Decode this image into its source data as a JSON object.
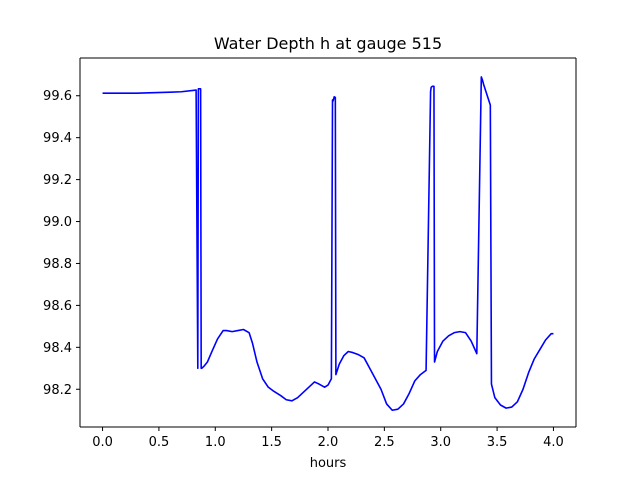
{
  "chart_data": {
    "type": "line",
    "title": "Water Depth h at gauge 515",
    "xlabel": "hours",
    "ylabel": "",
    "xlim": [
      -0.2,
      4.2
    ],
    "ylim": [
      98.02,
      99.78
    ],
    "xticks": [
      0.0,
      0.5,
      1.0,
      1.5,
      2.0,
      2.5,
      3.0,
      3.5,
      4.0
    ],
    "xtick_labels": [
      "0.0",
      "0.5",
      "1.0",
      "1.5",
      "2.0",
      "2.5",
      "3.0",
      "3.5",
      "4.0"
    ],
    "yticks": [
      98.2,
      98.4,
      98.6,
      98.8,
      99.0,
      99.2,
      99.4,
      99.6
    ],
    "ytick_labels": [
      "98.2",
      "98.4",
      "98.6",
      "98.8",
      "99.0",
      "99.2",
      "99.4",
      "99.6"
    ],
    "grid": false,
    "series": [
      {
        "color": "#0000ff",
        "x": [
          0.0,
          0.3,
          0.6,
          0.7,
          0.83,
          0.845,
          0.85,
          0.87,
          0.875,
          0.88,
          0.9,
          0.93,
          0.97,
          1.02,
          1.07,
          1.1,
          1.15,
          1.2,
          1.25,
          1.3,
          1.33,
          1.37,
          1.42,
          1.47,
          1.52,
          1.58,
          1.63,
          1.68,
          1.73,
          1.78,
          1.83,
          1.88,
          1.92,
          1.97,
          2.0,
          2.03,
          2.04,
          2.045,
          2.055,
          2.065,
          2.07,
          2.1,
          2.14,
          2.18,
          2.22,
          2.27,
          2.32,
          2.37,
          2.42,
          2.47,
          2.52,
          2.57,
          2.62,
          2.67,
          2.72,
          2.77,
          2.82,
          2.87,
          2.91,
          2.915,
          2.925,
          2.94,
          2.945,
          2.97,
          3.02,
          3.07,
          3.12,
          3.17,
          3.22,
          3.27,
          3.32,
          3.36,
          3.37,
          3.38,
          3.44,
          3.45,
          3.48,
          3.53,
          3.58,
          3.63,
          3.68,
          3.73,
          3.78,
          3.83,
          3.88,
          3.93,
          3.98,
          4.0
        ],
        "y": [
          99.612,
          99.612,
          99.617,
          99.619,
          99.627,
          98.3,
          99.633,
          99.633,
          98.3,
          98.3,
          98.31,
          98.33,
          98.38,
          98.44,
          98.48,
          98.48,
          98.475,
          98.48,
          98.485,
          98.47,
          98.42,
          98.33,
          98.25,
          98.21,
          98.19,
          98.17,
          98.15,
          98.145,
          98.16,
          98.185,
          98.21,
          98.235,
          98.225,
          98.21,
          98.22,
          98.25,
          99.58,
          99.575,
          99.595,
          99.592,
          98.27,
          98.32,
          98.36,
          98.38,
          98.375,
          98.365,
          98.35,
          98.3,
          98.25,
          98.2,
          98.13,
          98.1,
          98.105,
          98.13,
          98.18,
          98.24,
          98.27,
          98.29,
          99.62,
          99.64,
          99.645,
          99.645,
          98.33,
          98.38,
          98.43,
          98.455,
          98.47,
          98.475,
          98.47,
          98.43,
          98.37,
          99.69,
          99.675,
          99.655,
          99.555,
          98.225,
          98.16,
          98.125,
          98.11,
          98.115,
          98.14,
          98.2,
          98.28,
          98.345,
          98.39,
          98.435,
          98.465,
          98.465
        ]
      }
    ]
  }
}
